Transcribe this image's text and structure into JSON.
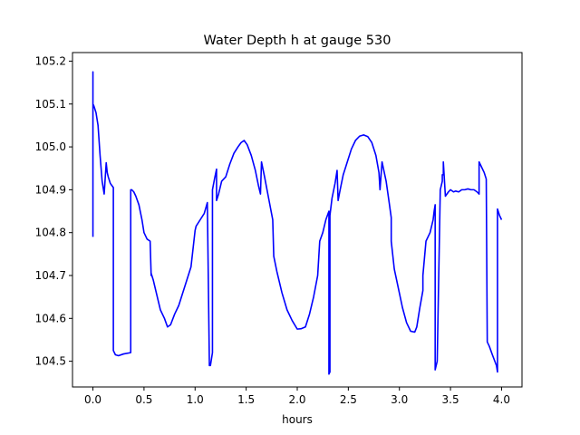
{
  "chart_data": {
    "type": "line",
    "title": "Water Depth h at gauge 530",
    "xlabel": "hours",
    "ylabel": "",
    "xlim": [
      -0.2,
      4.2
    ],
    "ylim": [
      104.44,
      105.22
    ],
    "xticks": [
      0.0,
      0.5,
      1.0,
      1.5,
      2.0,
      2.5,
      3.0,
      3.5,
      4.0
    ],
    "xtick_labels": [
      "0.0",
      "0.5",
      "1.0",
      "1.5",
      "2.0",
      "2.5",
      "3.0",
      "3.5",
      "4.0"
    ],
    "yticks": [
      104.5,
      104.6,
      104.7,
      104.8,
      104.9,
      105.0,
      105.1,
      105.2
    ],
    "ytick_labels": [
      "104.5",
      "104.6",
      "104.7",
      "104.8",
      "104.9",
      "105.0",
      "105.1",
      "105.2"
    ],
    "grid": false,
    "legend": "none",
    "series": [
      {
        "color": "#0000ff",
        "x": [
          0.0,
          0.0,
          0.0,
          0.01,
          0.03,
          0.05,
          0.07,
          0.09,
          0.11,
          0.13,
          0.14,
          0.15,
          0.17,
          0.2,
          0.2,
          0.22,
          0.25,
          0.3,
          0.37,
          0.37,
          0.38,
          0.4,
          0.42,
          0.45,
          0.48,
          0.5,
          0.53,
          0.56,
          0.57,
          0.57,
          0.59,
          0.62,
          0.66,
          0.7,
          0.73,
          0.76,
          0.8,
          0.84,
          0.88,
          0.92,
          0.96,
          1.0,
          1.01,
          1.05,
          1.09,
          1.12,
          1.14,
          1.15,
          1.17,
          1.17,
          1.19,
          1.21,
          1.21,
          1.23,
          1.26,
          1.3,
          1.34,
          1.38,
          1.42,
          1.45,
          1.48,
          1.51,
          1.55,
          1.59,
          1.62,
          1.64,
          1.65,
          1.68,
          1.72,
          1.76,
          1.77,
          1.8,
          1.85,
          1.9,
          1.95,
          2.0,
          2.04,
          2.08,
          2.12,
          2.16,
          2.2,
          2.22,
          2.22,
          2.25,
          2.28,
          2.31,
          2.31,
          2.32,
          2.32,
          2.34,
          2.37,
          2.39,
          2.4,
          2.42,
          2.45,
          2.49,
          2.53,
          2.57,
          2.61,
          2.65,
          2.69,
          2.73,
          2.77,
          2.8,
          2.81,
          2.83,
          2.87,
          2.9,
          2.92,
          2.92,
          2.95,
          2.99,
          3.03,
          3.07,
          3.11,
          3.15,
          3.17,
          3.2,
          3.23,
          3.23,
          3.26,
          3.3,
          3.33,
          3.34,
          3.35,
          3.35,
          3.37,
          3.4,
          3.42,
          3.42,
          3.43,
          3.43,
          3.45,
          3.48,
          3.5,
          3.53,
          3.55,
          3.58,
          3.61,
          3.64,
          3.67,
          3.7,
          3.73,
          3.76,
          3.78,
          3.78,
          3.8,
          3.83,
          3.85,
          3.86,
          3.88,
          3.91,
          3.95,
          3.96,
          3.96,
          3.98,
          4.0
        ],
        "y": [
          104.79,
          105.175,
          105.1,
          105.095,
          105.08,
          105.05,
          104.98,
          104.92,
          104.89,
          104.963,
          104.94,
          104.93,
          104.915,
          104.905,
          104.525,
          104.515,
          104.513,
          104.517,
          104.52,
          104.9,
          104.9,
          104.895,
          104.885,
          104.865,
          104.83,
          104.8,
          104.785,
          104.78,
          104.7,
          104.705,
          104.69,
          104.66,
          104.62,
          104.6,
          104.58,
          104.585,
          104.61,
          104.63,
          104.66,
          104.69,
          104.72,
          104.805,
          104.815,
          104.83,
          104.845,
          104.87,
          104.49,
          104.49,
          104.52,
          104.9,
          104.925,
          104.948,
          104.875,
          104.89,
          104.92,
          104.93,
          104.96,
          104.985,
          105.0,
          105.01,
          105.015,
          105.005,
          104.98,
          104.945,
          104.91,
          104.89,
          104.965,
          104.93,
          104.88,
          104.83,
          104.745,
          104.71,
          104.66,
          104.62,
          104.595,
          104.575,
          104.576,
          104.58,
          104.61,
          104.65,
          104.7,
          104.78,
          104.78,
          104.8,
          104.83,
          104.85,
          104.47,
          104.475,
          104.84,
          104.88,
          104.915,
          104.945,
          104.875,
          104.9,
          104.935,
          104.965,
          104.995,
          105.015,
          105.025,
          105.028,
          105.024,
          105.01,
          104.98,
          104.94,
          104.9,
          104.965,
          104.92,
          104.87,
          104.835,
          104.78,
          104.715,
          104.67,
          104.625,
          104.59,
          104.57,
          104.568,
          104.58,
          104.625,
          104.665,
          104.7,
          104.78,
          104.8,
          104.83,
          104.85,
          104.865,
          104.48,
          104.5,
          104.9,
          104.92,
          104.935,
          104.935,
          104.965,
          104.885,
          104.895,
          104.9,
          104.895,
          104.897,
          104.895,
          104.9,
          104.9,
          104.902,
          104.9,
          104.9,
          104.895,
          104.89,
          104.965,
          104.955,
          104.94,
          104.925,
          104.545,
          104.535,
          104.515,
          104.49,
          104.475,
          104.855,
          104.84,
          104.83
        ]
      }
    ]
  }
}
